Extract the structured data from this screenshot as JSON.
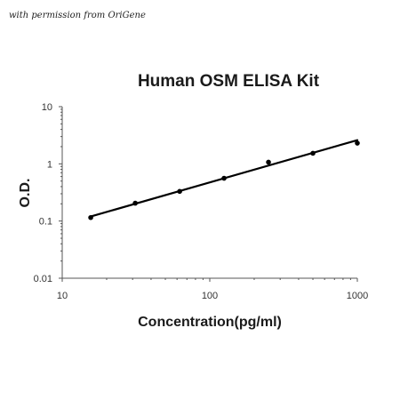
{
  "credit": "with permission from OriGene",
  "chart_data": {
    "type": "scatter",
    "title": "Human OSM ELISA Kit",
    "xlabel": "Concentration(pg/ml)",
    "ylabel": "O.D.",
    "x_scale": "log",
    "y_scale": "log",
    "xlim": [
      10,
      1000
    ],
    "ylim": [
      0.01,
      10
    ],
    "x_ticks": [
      "10",
      "100",
      "1000"
    ],
    "y_ticks": [
      "0.01",
      "0.1",
      "1",
      "10"
    ],
    "grid": false,
    "legend": "none",
    "series": [
      {
        "x": [
          15.6,
          31.25,
          62.5,
          125,
          250,
          500,
          1000
        ],
        "y": [
          0.115,
          0.205,
          0.33,
          0.56,
          1.07,
          1.53,
          2.3
        ]
      }
    ],
    "fit_line": {
      "x": [
        15.6,
        1000
      ],
      "y": [
        0.12,
        2.6
      ]
    },
    "colors": {
      "marker": "#000000",
      "line": "#000000",
      "axis": "#555555"
    }
  }
}
